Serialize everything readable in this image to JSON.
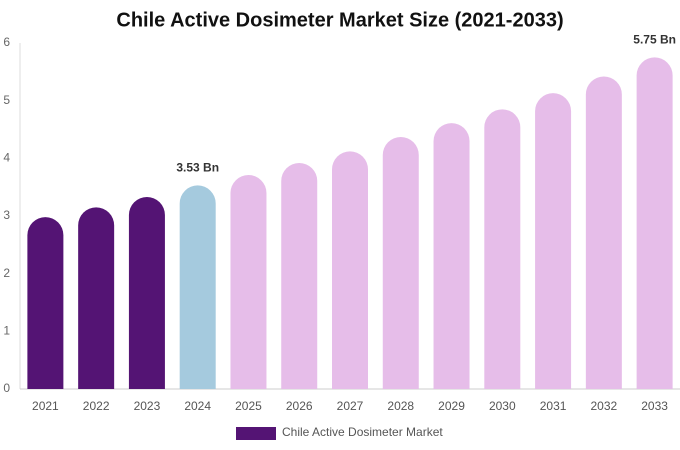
{
  "chart_data": {
    "type": "bar",
    "title": "Chile Active Dosimeter Market Size (2021-2033)",
    "categories": [
      "2021",
      "2022",
      "2023",
      "2024",
      "2025",
      "2026",
      "2027",
      "2028",
      "2029",
      "2030",
      "2031",
      "2032",
      "2033"
    ],
    "series": [
      {
        "name": "Chile Active Dosimeter Market",
        "color": "#541474",
        "colors": [
          "#541474",
          "#541474",
          "#541474",
          "#a5cade",
          "#e6bde9",
          "#e6bde9",
          "#e6bde9",
          "#e6bde9",
          "#e6bde9",
          "#e6bde9",
          "#e6bde9",
          "#e6bde9",
          "#e6bde9"
        ],
        "values": [
          2.98,
          3.15,
          3.33,
          3.53,
          3.71,
          3.92,
          4.12,
          4.37,
          4.61,
          4.85,
          5.13,
          5.42,
          5.75
        ],
        "value_labels": [
          null,
          null,
          null,
          "3.53 Bn",
          null,
          null,
          null,
          null,
          null,
          null,
          null,
          null,
          "5.75 Bn"
        ]
      }
    ],
    "ylim": [
      0,
      6
    ],
    "yticks": [
      0,
      1,
      2,
      3,
      4,
      5,
      6
    ],
    "grid": false
  }
}
